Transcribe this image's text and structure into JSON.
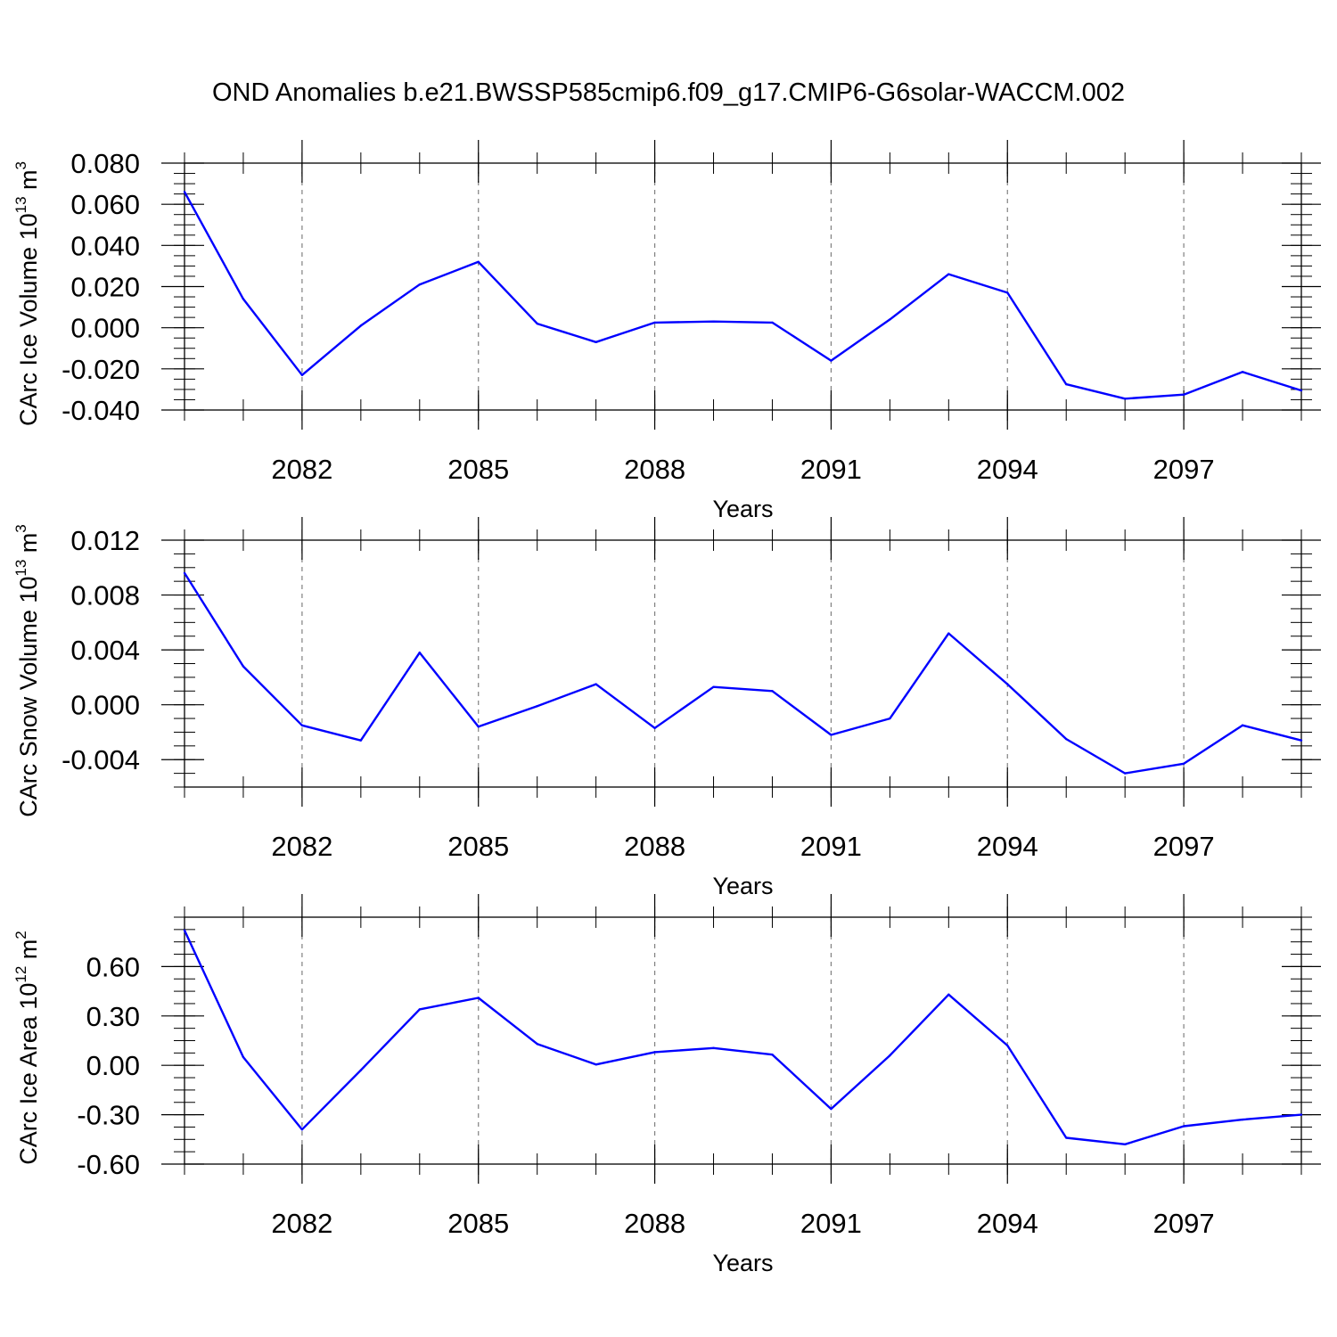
{
  "title": "OND Anomalies b.e21.BWSSP585cmip6.f09_g17.CMIP6-G6solar-WACCM.002",
  "colors": {
    "line": "#0000ff",
    "axis": "#000000",
    "grid": "#808080"
  },
  "chart_data": [
    {
      "type": "line",
      "ylabel": "CArc Ice Volume 10",
      "ylabel_exp": "13",
      "ylabel_unit": " m",
      "ylabel_unit_exp": "3",
      "xlabel": "Years",
      "xlim": [
        2080,
        2099
      ],
      "ylim": [
        -0.04,
        0.08
      ],
      "yticks": [
        -0.04,
        -0.02,
        0.0,
        0.02,
        0.04,
        0.06,
        0.08
      ],
      "ytick_labels": [
        "-0.040",
        "-0.020",
        "0.000",
        "0.020",
        "0.040",
        "0.060",
        "0.080"
      ],
      "xticks": [
        2082,
        2085,
        2088,
        2091,
        2094,
        2097
      ],
      "xtick_labels": [
        "2082",
        "2085",
        "2088",
        "2091",
        "2094",
        "2097"
      ],
      "grid": "vertical dashed at major x ticks",
      "x": [
        2080,
        2081,
        2082,
        2083,
        2084,
        2085,
        2086,
        2087,
        2088,
        2089,
        2090,
        2091,
        2092,
        2093,
        2094,
        2095,
        2096,
        2097,
        2098,
        2099
      ],
      "values": [
        0.066,
        0.014,
        -0.023,
        0.001,
        0.021,
        0.032,
        0.002,
        -0.007,
        0.0025,
        0.003,
        0.0025,
        -0.016,
        0.004,
        0.026,
        0.017,
        -0.0275,
        -0.0345,
        -0.0325,
        -0.0215,
        -0.0305
      ]
    },
    {
      "type": "line",
      "ylabel": "CArc Snow Volume 10",
      "ylabel_exp": "13",
      "ylabel_unit": " m",
      "ylabel_unit_exp": "3",
      "xlabel": "Years",
      "xlim": [
        2080,
        2099
      ],
      "ylim": [
        -0.006,
        0.012
      ],
      "yticks": [
        -0.004,
        0.0,
        0.004,
        0.008,
        0.012
      ],
      "ytick_labels": [
        "-0.004",
        "0.000",
        "0.004",
        "0.008",
        "0.012"
      ],
      "xticks": [
        2082,
        2085,
        2088,
        2091,
        2094,
        2097
      ],
      "xtick_labels": [
        "2082",
        "2085",
        "2088",
        "2091",
        "2094",
        "2097"
      ],
      "grid": "vertical dashed at major x ticks",
      "x": [
        2080,
        2081,
        2082,
        2083,
        2084,
        2085,
        2086,
        2087,
        2088,
        2089,
        2090,
        2091,
        2092,
        2093,
        2094,
        2095,
        2096,
        2097,
        2098,
        2099
      ],
      "values": [
        0.0096,
        0.0028,
        -0.0015,
        -0.0026,
        0.0038,
        -0.0016,
        -0.0001,
        0.0015,
        -0.0017,
        0.0013,
        0.001,
        -0.0022,
        -0.001,
        0.0052,
        0.0015,
        -0.0025,
        -0.005,
        -0.0043,
        -0.0015,
        -0.0026
      ]
    },
    {
      "type": "line",
      "ylabel": "CArc Ice Area 10",
      "ylabel_exp": "12",
      "ylabel_unit": " m",
      "ylabel_unit_exp": "2",
      "xlabel": "Years",
      "xlim": [
        2080,
        2099
      ],
      "ylim": [
        -0.6,
        0.9
      ],
      "yticks": [
        -0.6,
        -0.3,
        0.0,
        0.3,
        0.6
      ],
      "ytick_labels": [
        "-0.60",
        "-0.30",
        "0.00",
        "0.30",
        "0.60"
      ],
      "xticks": [
        2082,
        2085,
        2088,
        2091,
        2094,
        2097
      ],
      "xtick_labels": [
        "2082",
        "2085",
        "2088",
        "2091",
        "2094",
        "2097"
      ],
      "grid": "vertical dashed at major x ticks",
      "x": [
        2080,
        2081,
        2082,
        2083,
        2084,
        2085,
        2086,
        2087,
        2088,
        2089,
        2090,
        2091,
        2092,
        2093,
        2094,
        2095,
        2096,
        2097,
        2098,
        2099
      ],
      "values": [
        0.82,
        0.05,
        -0.39,
        -0.03,
        0.34,
        0.41,
        0.13,
        0.005,
        0.08,
        0.105,
        0.065,
        -0.265,
        0.06,
        0.43,
        0.12,
        -0.44,
        -0.48,
        -0.37,
        -0.33,
        -0.3
      ]
    }
  ]
}
